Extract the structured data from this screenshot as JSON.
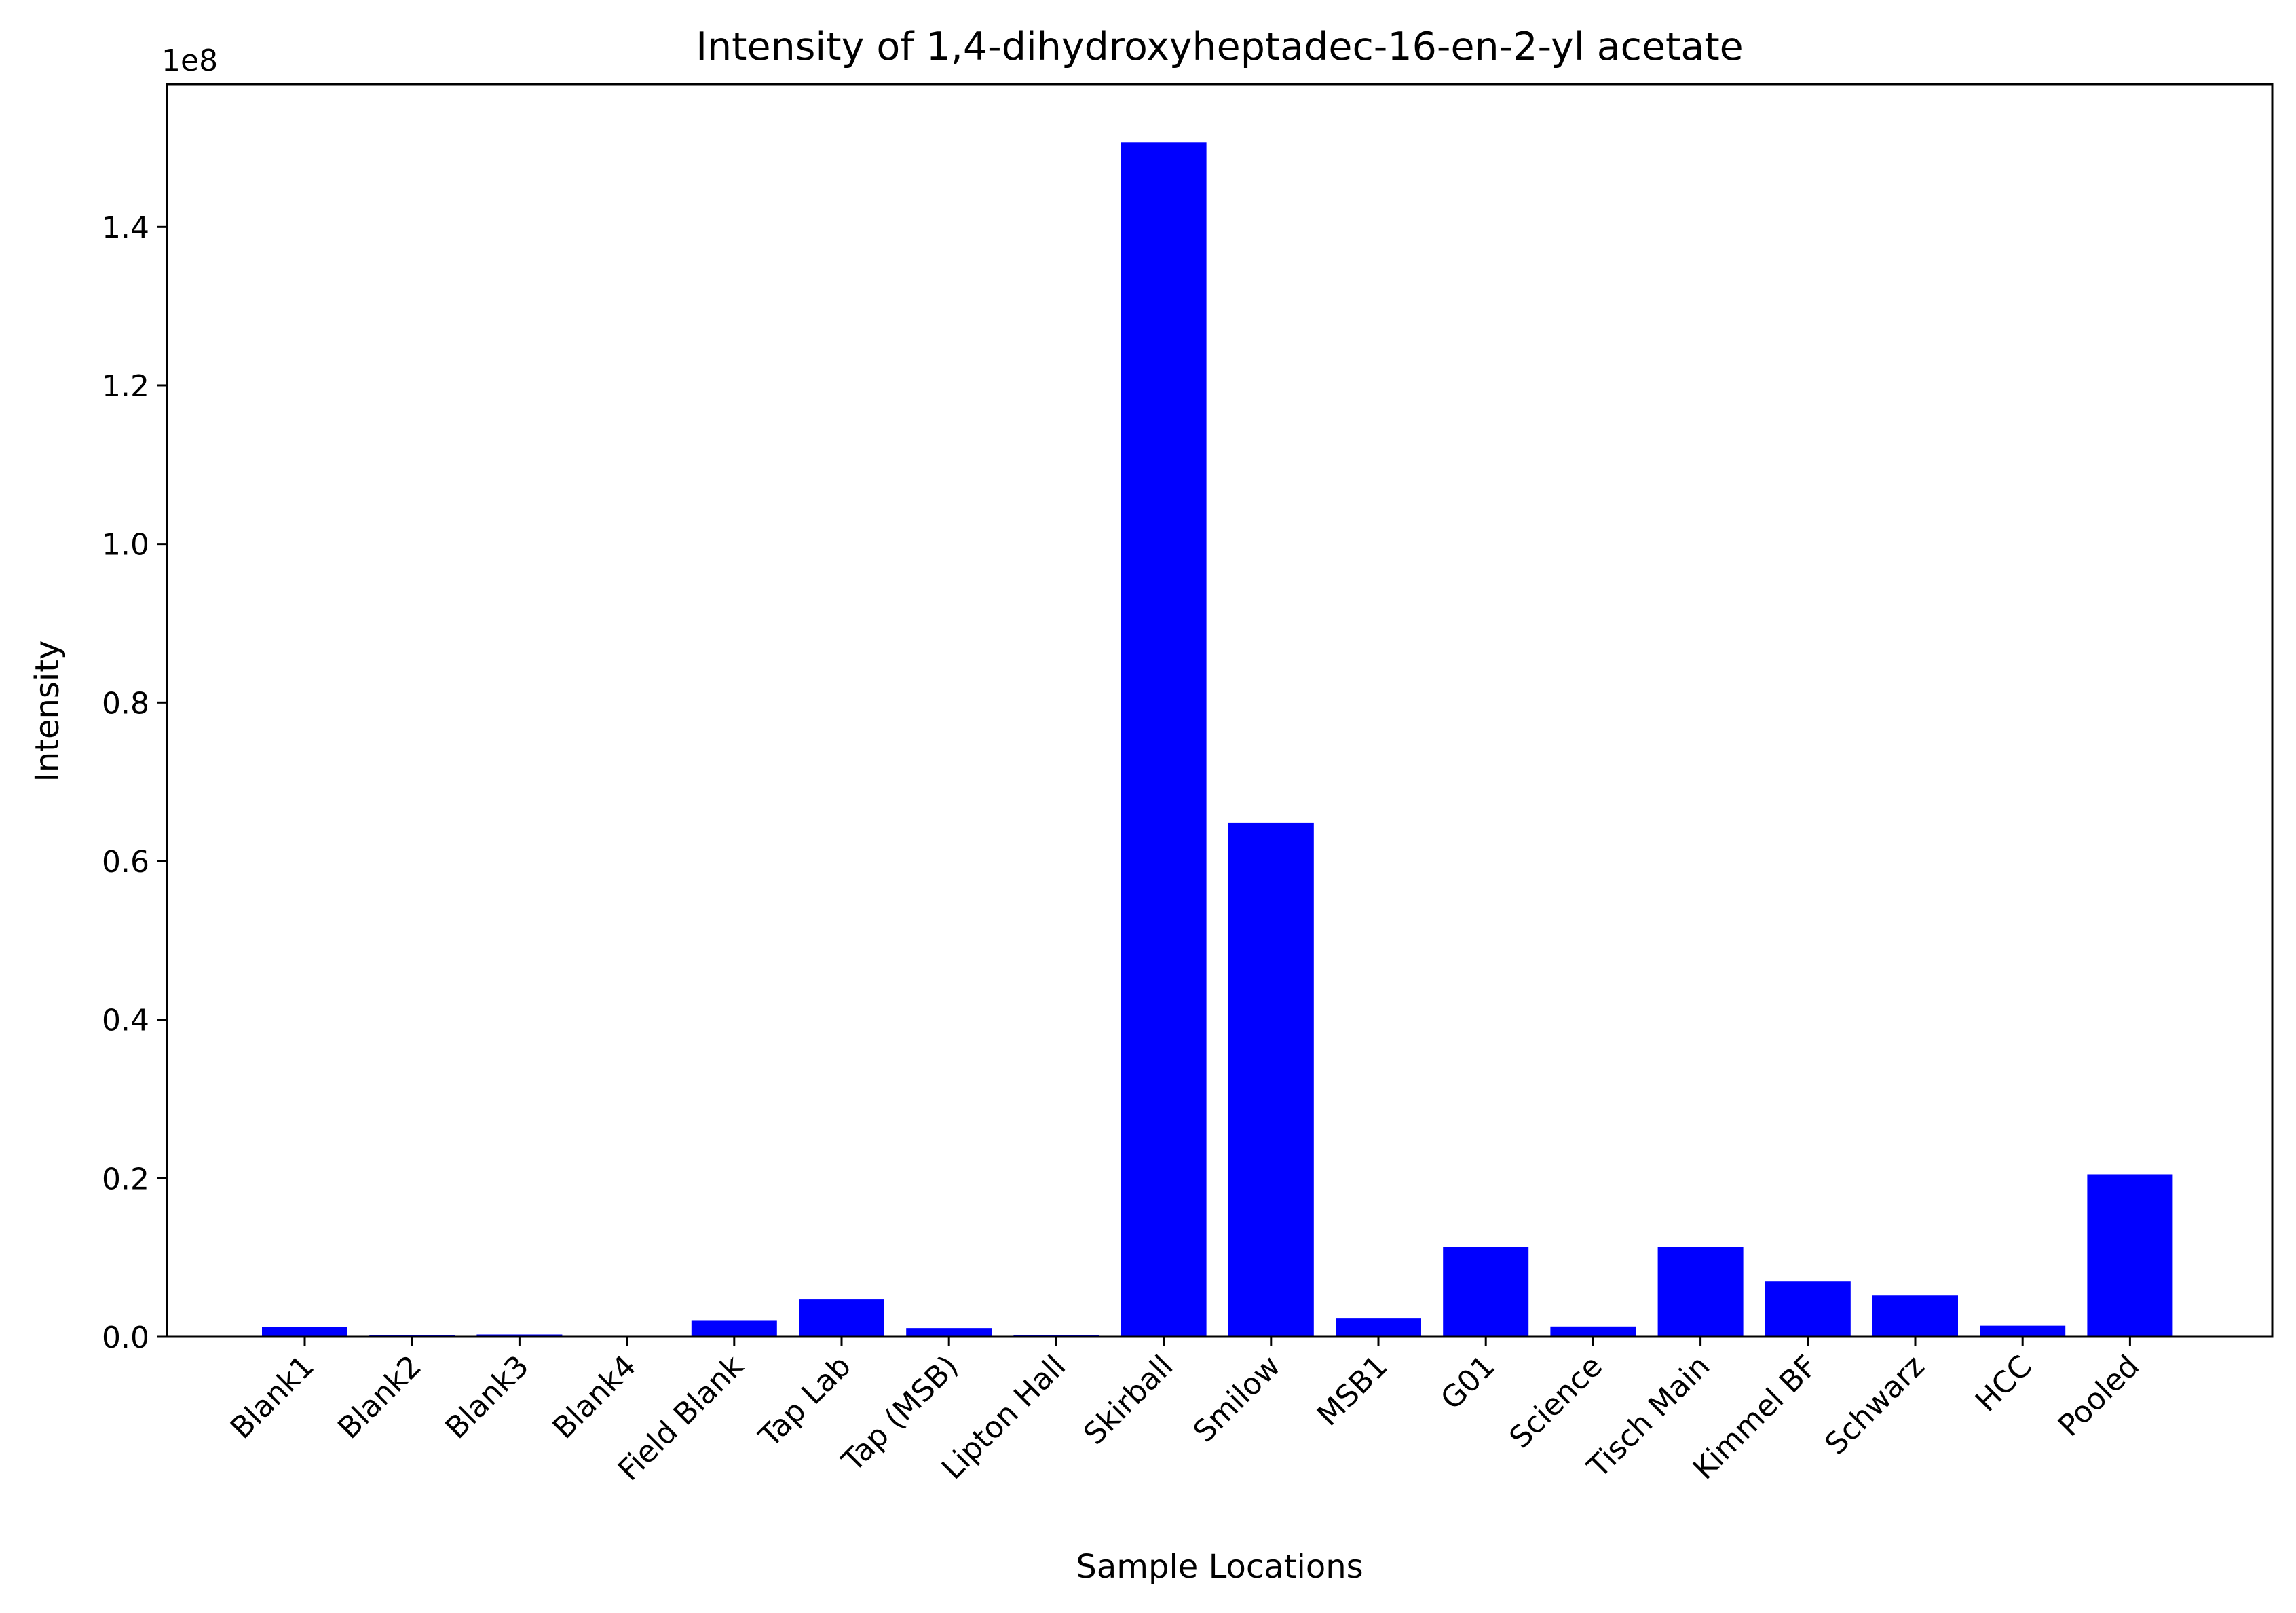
{
  "chart_data": {
    "type": "bar",
    "title": "Intensity of 1,4-dihydroxyheptadec-16-en-2-yl acetate",
    "xlabel": "Sample Locations",
    "ylabel": "Intensity",
    "y_offset_label": "1e8",
    "ylim": [
      0,
      1.58
    ],
    "y_scale_exponent": 8,
    "yticks": [
      "0.0",
      "0.2",
      "0.4",
      "0.6",
      "0.8",
      "1.0",
      "1.2",
      "1.4"
    ],
    "bar_color": "#0000ff",
    "grid": false,
    "categories": [
      "Blank1",
      "Blank2",
      "Blank3",
      "Blank4",
      "Field Blank",
      "Tap Lab",
      "Tap (MSB)",
      "Lipton Hall",
      "Skirball",
      "Smilow",
      "MSB1",
      "G01",
      "Science",
      "Tisch Main",
      "Kimmel BF",
      "Schwarz",
      "HCC",
      "Pooled"
    ],
    "values": [
      0.012,
      0.002,
      0.003,
      0.001,
      0.021,
      0.047,
      0.011,
      0.002,
      1.507,
      0.648,
      0.023,
      0.113,
      0.013,
      0.113,
      0.07,
      0.052,
      0.014,
      0.205
    ]
  }
}
